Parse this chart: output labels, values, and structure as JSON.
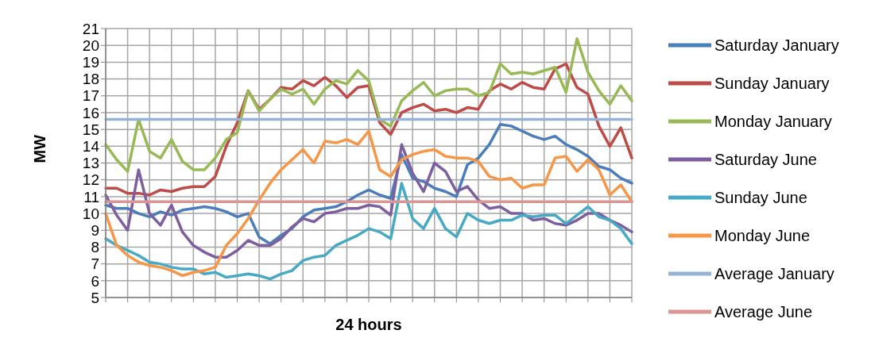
{
  "chart_data": {
    "type": "line",
    "xlabel": "24 hours",
    "ylabel": "MW",
    "categories": [
      null,
      null,
      null,
      null,
      null,
      null,
      null,
      null,
      null,
      null,
      null,
      null,
      null,
      null,
      null,
      null,
      null,
      null,
      null,
      null,
      null,
      null,
      null,
      null,
      null,
      null,
      null,
      null,
      null,
      null,
      null,
      null,
      null,
      null,
      null,
      null,
      null,
      null,
      null,
      null,
      null,
      null,
      null,
      null,
      null,
      null,
      null,
      null,
      null
    ],
    "ylim": [
      5,
      21
    ],
    "yticks": [
      5,
      6,
      7,
      8,
      9,
      10,
      11,
      12,
      13,
      14,
      15,
      16,
      17,
      18,
      19,
      20,
      21
    ],
    "grid": true,
    "legend": "right",
    "series": [
      {
        "name": "Saturday January",
        "color": "#4a7ebb",
        "values": [
          10.5,
          10.3,
          10.3,
          10.0,
          9.8,
          10.1,
          9.9,
          10.2,
          10.3,
          10.4,
          10.3,
          10.1,
          9.8,
          10.0,
          8.6,
          8.2,
          8.7,
          9.1,
          9.8,
          10.2,
          10.3,
          10.4,
          10.7,
          11.1,
          11.4,
          11.1,
          10.9,
          13.5,
          12.1,
          11.9,
          11.5,
          11.3,
          11.0,
          12.9,
          13.3,
          14.1,
          15.3,
          15.2,
          14.9,
          14.6,
          14.4,
          14.6,
          14.1,
          13.8,
          13.4,
          12.8,
          12.6,
          12.1,
          11.8
        ]
      },
      {
        "name": "Sunday January",
        "color": "#be4b48",
        "values": [
          11.5,
          11.5,
          11.2,
          11.2,
          11.1,
          11.4,
          11.3,
          11.5,
          11.6,
          11.6,
          12.2,
          14.0,
          15.4,
          17.3,
          16.2,
          16.8,
          17.5,
          17.4,
          17.9,
          17.6,
          18.1,
          17.6,
          16.9,
          17.5,
          17.6,
          15.4,
          14.7,
          16.0,
          16.3,
          16.5,
          16.1,
          16.2,
          16.0,
          16.3,
          16.2,
          17.3,
          17.7,
          17.4,
          17.8,
          17.5,
          17.4,
          18.6,
          18.9,
          17.5,
          17.1,
          15.2,
          14.0,
          15.1,
          13.3
        ]
      },
      {
        "name": "Monday January",
        "color": "#98b954",
        "values": [
          14.1,
          13.2,
          12.5,
          15.6,
          13.7,
          13.3,
          14.4,
          13.1,
          12.6,
          12.6,
          13.3,
          14.4,
          14.8,
          17.3,
          16.1,
          16.8,
          17.4,
          17.1,
          17.4,
          16.5,
          17.4,
          17.9,
          17.7,
          18.5,
          17.9,
          15.6,
          15.2,
          16.7,
          17.3,
          17.8,
          17.0,
          17.3,
          17.4,
          17.4,
          17.0,
          17.2,
          18.9,
          18.3,
          18.4,
          18.3,
          18.5,
          18.7,
          17.2,
          20.4,
          18.4,
          17.3,
          16.5,
          17.6,
          16.7
        ]
      },
      {
        "name": "Saturday June",
        "color": "#7d5fa0",
        "values": [
          11.1,
          9.9,
          9.0,
          12.6,
          10.0,
          9.3,
          10.5,
          8.9,
          8.1,
          7.7,
          7.4,
          7.4,
          7.8,
          8.4,
          8.1,
          8.1,
          8.5,
          9.2,
          9.7,
          9.5,
          10.0,
          10.1,
          10.3,
          10.3,
          10.5,
          10.4,
          9.9,
          14.1,
          12.4,
          11.3,
          13.0,
          12.5,
          11.3,
          11.6,
          10.8,
          10.3,
          10.4,
          10.0,
          10.0,
          9.6,
          9.7,
          9.4,
          9.3,
          9.6,
          10.0,
          10.0,
          9.6,
          9.3,
          8.9
        ]
      },
      {
        "name": "Sunday June",
        "color": "#46aac5",
        "values": [
          8.5,
          8.1,
          7.8,
          7.5,
          7.1,
          7.0,
          6.8,
          6.7,
          6.7,
          6.4,
          6.5,
          6.2,
          6.3,
          6.4,
          6.3,
          6.1,
          6.4,
          6.6,
          7.2,
          7.4,
          7.5,
          8.1,
          8.4,
          8.7,
          9.1,
          8.9,
          8.5,
          11.8,
          9.7,
          9.1,
          10.3,
          9.1,
          8.6,
          10.0,
          9.6,
          9.4,
          9.6,
          9.6,
          9.9,
          9.8,
          9.9,
          9.9,
          9.4,
          9.9,
          10.4,
          9.8,
          9.6,
          9.1,
          8.2
        ]
      },
      {
        "name": "Monday June",
        "color": "#f79646",
        "values": [
          10.0,
          8.1,
          7.5,
          7.1,
          6.9,
          6.8,
          6.6,
          6.3,
          6.5,
          6.6,
          6.8,
          8.1,
          8.8,
          9.7,
          10.8,
          11.8,
          12.6,
          13.2,
          13.8,
          13.0,
          14.3,
          14.2,
          14.4,
          14.1,
          14.9,
          12.6,
          12.2,
          13.2,
          13.5,
          13.7,
          13.8,
          13.4,
          13.3,
          13.3,
          13.1,
          12.2,
          12.0,
          12.1,
          11.5,
          11.7,
          11.7,
          13.3,
          13.4,
          12.5,
          13.2,
          12.6,
          11.1,
          11.7,
          10.7
        ]
      },
      {
        "name": "Average January",
        "color": "#95b3d7",
        "values": [
          15.6,
          15.6,
          15.6,
          15.6,
          15.6,
          15.6,
          15.6,
          15.6,
          15.6,
          15.6,
          15.6,
          15.6,
          15.6,
          15.6,
          15.6,
          15.6,
          15.6,
          15.6,
          15.6,
          15.6,
          15.6,
          15.6,
          15.6,
          15.6,
          15.6,
          15.6,
          15.6,
          15.6,
          15.6,
          15.6,
          15.6,
          15.6,
          15.6,
          15.6,
          15.6,
          15.6,
          15.6,
          15.6,
          15.6,
          15.6,
          15.6,
          15.6,
          15.6,
          15.6,
          15.6,
          15.6,
          15.6,
          15.6,
          15.6
        ]
      },
      {
        "name": "Average June",
        "color": "#d99694",
        "values": [
          10.7,
          10.7,
          10.7,
          10.7,
          10.7,
          10.7,
          10.7,
          10.7,
          10.7,
          10.7,
          10.7,
          10.7,
          10.7,
          10.7,
          10.7,
          10.7,
          10.7,
          10.7,
          10.7,
          10.7,
          10.7,
          10.7,
          10.7,
          10.7,
          10.7,
          10.7,
          10.7,
          10.7,
          10.7,
          10.7,
          10.7,
          10.7,
          10.7,
          10.7,
          10.7,
          10.7,
          10.7,
          10.7,
          10.7,
          10.7,
          10.7,
          10.7,
          10.7,
          10.7,
          10.7,
          10.7,
          10.7,
          10.7,
          10.7
        ]
      }
    ]
  }
}
